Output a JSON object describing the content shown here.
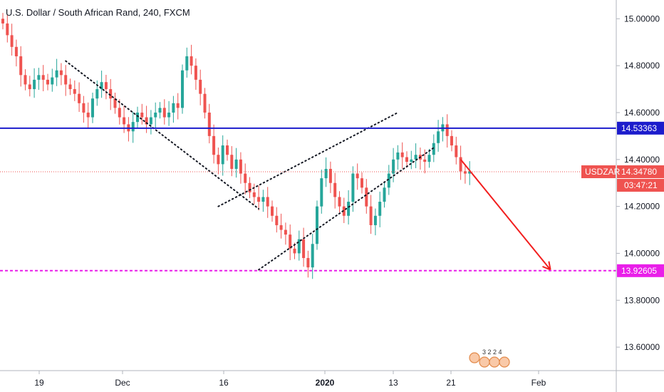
{
  "chart_data": {
    "type": "candlestick",
    "title": "U.S. Dollar / South African Rand, 240, FXCM",
    "symbol": "USDZAR",
    "y_range": [
      13.5,
      15.08
    ],
    "y_ticks": [
      "15.00000",
      "14.80000",
      "14.60000",
      "14.40000",
      "14.20000",
      "14.00000",
      "13.80000",
      "13.60000"
    ],
    "x_ticks": [
      {
        "label": "19",
        "bold": false
      },
      {
        "label": "Dec",
        "bold": false
      },
      {
        "label": "16",
        "bold": false
      },
      {
        "label": "2020",
        "bold": true
      },
      {
        "label": "13",
        "bold": false
      },
      {
        "label": "21",
        "bold": false
      },
      {
        "label": "Feb",
        "bold": false
      }
    ],
    "price_series_closes": [
      14.98,
      14.93,
      14.88,
      14.84,
      14.76,
      14.72,
      14.7,
      14.74,
      14.76,
      14.74,
      14.72,
      14.75,
      14.78,
      14.76,
      14.72,
      14.7,
      14.68,
      14.64,
      14.6,
      14.58,
      14.66,
      14.7,
      14.73,
      14.7,
      14.66,
      14.62,
      14.58,
      14.55,
      14.52,
      14.56,
      14.6,
      14.58,
      14.55,
      14.58,
      14.6,
      14.62,
      14.58,
      14.6,
      14.64,
      14.62,
      14.78,
      14.84,
      14.8,
      14.74,
      14.68,
      14.6,
      14.5,
      14.42,
      14.38,
      14.46,
      14.42,
      14.36,
      14.4,
      14.34,
      14.3,
      14.26,
      14.24,
      14.22,
      14.24,
      14.2,
      14.16,
      14.12,
      14.1,
      14.08,
      14.02,
      14.0,
      14.06,
      13.98,
      13.94,
      14.04,
      14.2,
      14.32,
      14.36,
      14.3,
      14.24,
      14.2,
      14.16,
      14.22,
      14.34,
      14.32,
      14.28,
      14.2,
      14.12,
      14.16,
      14.22,
      14.28,
      14.34,
      14.4,
      14.43,
      14.41,
      14.39,
      14.4,
      14.42,
      14.4,
      14.39,
      14.42,
      14.47,
      14.52,
      14.55,
      14.5,
      14.46,
      14.41,
      14.35,
      14.34,
      14.35
    ],
    "levels": [
      {
        "name": "",
        "value": 14.53363,
        "label": "14.53363",
        "color": "#1c1ccc",
        "style": "solid"
      },
      {
        "name": "USDZAR",
        "value": 14.3478,
        "label": "14.34780",
        "color": "#ef5350",
        "style": "dotted",
        "countdown": "03:47:21"
      },
      {
        "name": "",
        "value": 13.92605,
        "label": "13.92605",
        "color": "#e91ee9",
        "style": "dashed"
      }
    ],
    "annotations": [
      {
        "type": "dotted-line",
        "from": [
          14,
          14.82
        ],
        "to": [
          57,
          14.19
        ]
      },
      {
        "type": "dotted-line",
        "from": [
          48,
          14.2
        ],
        "to": [
          88,
          14.6
        ]
      },
      {
        "type": "dotted-line",
        "from": [
          57,
          13.93
        ],
        "to": [
          96,
          14.45
        ]
      },
      {
        "type": "arrow",
        "from": [
          102,
          14.4
        ],
        "to": [
          122,
          13.93
        ],
        "color": "#f21e1e"
      }
    ],
    "candle_colors": {
      "up": "#26a69a",
      "down": "#ef5350"
    },
    "grid": false,
    "legend": "none"
  },
  "events_label": "3 2 2 4"
}
